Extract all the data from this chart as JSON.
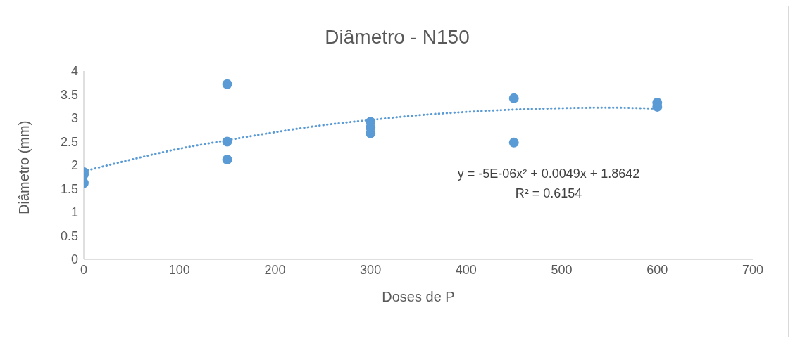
{
  "chart_data": {
    "type": "scatter",
    "title": "Diâmetro - N150",
    "xlabel": "Doses de P",
    "ylabel": "Diâmetro (mm)",
    "xlim": [
      0,
      700
    ],
    "xticks": [
      0,
      100,
      200,
      300,
      400,
      500,
      600,
      700
    ],
    "ylim": [
      0,
      4
    ],
    "yticks": [
      0,
      0.5,
      1,
      1.5,
      2,
      2.5,
      3,
      3.5,
      4
    ],
    "grid": false,
    "legend": false,
    "marker": "circle",
    "series": [
      {
        "color": "#5b9bd5",
        "x": [
          0,
          0,
          0,
          150,
          150,
          150,
          300,
          300,
          300,
          450,
          450,
          600,
          600
        ],
        "values": [
          1.85,
          1.8,
          1.62,
          3.72,
          2.5,
          2.12,
          2.92,
          2.8,
          2.68,
          3.42,
          2.48,
          3.33,
          3.24
        ]
      },
      {
        "type": "line",
        "color": "#5b9bd5",
        "line_style": "dotted",
        "marker": "none",
        "x": [
          0,
          50,
          100,
          150,
          200,
          250,
          300,
          350,
          400,
          450,
          500,
          550,
          600
        ],
        "values": [
          1.87,
          2.12,
          2.35,
          2.53,
          2.7,
          2.85,
          2.96,
          3.06,
          3.13,
          3.18,
          3.21,
          3.22,
          3.2
        ]
      }
    ],
    "annotations": [
      "y = -5E-06x² + 0.0049x + 1.8642",
      "R² = 0.6154"
    ]
  }
}
